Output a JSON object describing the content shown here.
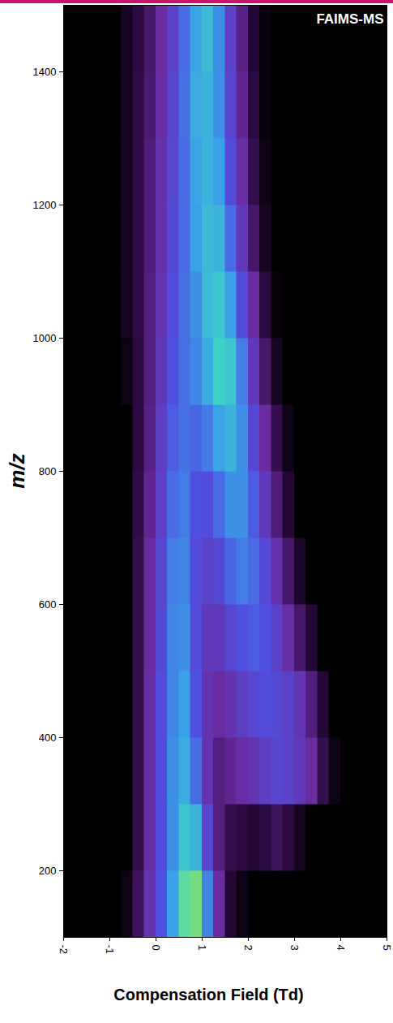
{
  "chart_data": {
    "type": "heatmap",
    "title": "FAIMS-MS",
    "x_label": "Compensation Field (Td)",
    "y_label": "m/z",
    "xlim": [
      -2,
      5
    ],
    "ylim": [
      100,
      1500
    ],
    "xticks": [
      -2,
      -1,
      0,
      1,
      2,
      3,
      4,
      5
    ],
    "yticks": [
      200,
      400,
      600,
      800,
      1000,
      1200,
      1400
    ],
    "zlim": [
      0,
      100
    ],
    "cells": {
      "x_edges": [
        -2,
        -1.75,
        -1.5,
        -1.25,
        -1,
        -0.75,
        -0.5,
        -0.25,
        0,
        0.25,
        0.5,
        0.75,
        1,
        1.25,
        1.5,
        1.75,
        2,
        2.25,
        2.5,
        2.75,
        3,
        3.25,
        3.5,
        3.75,
        4,
        4.25,
        4.5,
        4.75,
        5
      ],
      "y_edges": [
        100,
        200,
        300,
        400,
        500,
        600,
        700,
        800,
        900,
        1000,
        1100,
        1200,
        1300,
        1400,
        1500
      ],
      "values": [
        [
          0,
          0,
          0,
          0,
          0,
          2,
          10,
          25,
          40,
          55,
          75,
          80,
          50,
          20,
          5,
          2,
          0,
          0,
          0,
          0,
          0,
          0,
          0,
          0,
          0,
          0,
          0,
          0
        ],
        [
          0,
          0,
          0,
          0,
          0,
          0,
          8,
          22,
          38,
          52,
          65,
          60,
          35,
          15,
          8,
          6,
          5,
          6,
          10,
          6,
          3,
          0,
          0,
          0,
          0,
          0,
          0,
          0
        ],
        [
          0,
          0,
          0,
          0,
          0,
          0,
          8,
          22,
          38,
          52,
          58,
          45,
          25,
          15,
          18,
          22,
          26,
          30,
          34,
          32,
          28,
          20,
          8,
          2,
          0,
          0,
          0,
          0
        ],
        [
          0,
          0,
          0,
          0,
          0,
          0,
          8,
          22,
          38,
          50,
          55,
          40,
          25,
          20,
          25,
          30,
          35,
          38,
          36,
          32,
          26,
          15,
          5,
          0,
          0,
          0,
          0,
          0
        ],
        [
          0,
          0,
          0,
          0,
          0,
          0,
          8,
          20,
          36,
          50,
          52,
          38,
          28,
          28,
          35,
          40,
          42,
          40,
          32,
          22,
          12,
          5,
          0,
          0,
          0,
          0,
          0,
          0
        ],
        [
          0,
          0,
          0,
          0,
          0,
          0,
          8,
          20,
          35,
          48,
          50,
          38,
          32,
          36,
          44,
          48,
          45,
          36,
          24,
          12,
          4,
          0,
          0,
          0,
          0,
          0,
          0,
          0
        ],
        [
          0,
          0,
          0,
          0,
          0,
          0,
          7,
          18,
          32,
          45,
          48,
          40,
          38,
          45,
          52,
          52,
          42,
          28,
          14,
          5,
          0,
          0,
          0,
          0,
          0,
          0,
          0,
          0
        ],
        [
          0,
          0,
          0,
          0,
          0,
          0,
          6,
          16,
          30,
          42,
          46,
          44,
          48,
          56,
          60,
          52,
          36,
          20,
          8,
          2,
          0,
          0,
          0,
          0,
          0,
          0,
          0,
          0
        ],
        [
          0,
          0,
          0,
          0,
          0,
          2,
          6,
          15,
          28,
          40,
          46,
          50,
          58,
          68,
          65,
          48,
          28,
          12,
          3,
          0,
          0,
          0,
          0,
          0,
          0,
          0,
          0,
          0
        ],
        [
          0,
          0,
          0,
          0,
          0,
          3,
          7,
          15,
          26,
          38,
          46,
          52,
          62,
          65,
          55,
          38,
          20,
          6,
          1,
          0,
          0,
          0,
          0,
          0,
          0,
          0,
          0,
          0
        ],
        [
          0,
          0,
          0,
          0,
          0,
          3,
          7,
          14,
          24,
          36,
          45,
          55,
          62,
          60,
          45,
          28,
          12,
          3,
          0,
          0,
          0,
          0,
          0,
          0,
          0,
          0,
          0,
          0
        ],
        [
          0,
          0,
          0,
          0,
          0,
          3,
          7,
          14,
          24,
          35,
          45,
          56,
          60,
          55,
          38,
          22,
          8,
          2,
          0,
          0,
          0,
          0,
          0,
          0,
          0,
          0,
          0,
          0
        ],
        [
          0,
          0,
          0,
          0,
          0,
          3,
          7,
          13,
          22,
          34,
          46,
          58,
          60,
          52,
          34,
          18,
          6,
          1,
          0,
          0,
          0,
          0,
          0,
          0,
          0,
          0,
          0,
          0
        ],
        [
          0,
          0,
          0,
          0,
          0,
          3,
          6,
          12,
          20,
          32,
          45,
          56,
          62,
          52,
          32,
          16,
          5,
          1,
          0,
          0,
          0,
          0,
          0,
          0,
          0,
          0,
          0,
          0
        ]
      ]
    }
  }
}
